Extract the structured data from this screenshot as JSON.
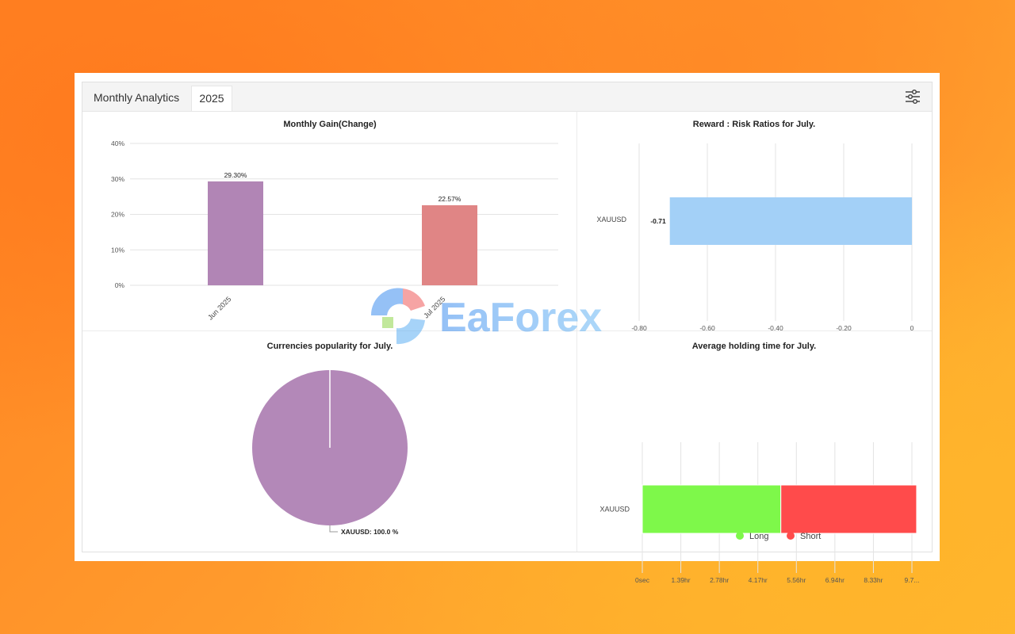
{
  "header": {
    "title": "Monthly Analytics",
    "year": "2025"
  },
  "watermark": "EaForex",
  "colors": {
    "jun": "#b185b5",
    "jul": "#e08585",
    "risk_bar": "#a3d0f7",
    "long": "#7ef84a",
    "short": "#ff4b4b",
    "pie": "#b388b8"
  },
  "chart_data": [
    {
      "type": "bar",
      "title": "Monthly Gain(Change)",
      "categories": [
        "Jun 2025",
        "Jul 2025"
      ],
      "values": [
        29.3,
        22.57
      ],
      "value_labels": [
        "29.30%",
        "22.57%"
      ],
      "ylim": [
        0,
        40
      ],
      "yticks": [
        "0%",
        "10%",
        "20%",
        "30%",
        "40%"
      ],
      "grid": true
    },
    {
      "type": "bar",
      "orientation": "horizontal",
      "title": "Reward : Risk Ratios for July.",
      "categories": [
        "XAUUSD"
      ],
      "values": [
        -0.71
      ],
      "value_labels": [
        "-0.71"
      ],
      "xlim": [
        -0.8,
        0
      ],
      "xticks": [
        "-0.80",
        "-0.60",
        "-0.40",
        "-0.20",
        "0"
      ],
      "grid": true
    },
    {
      "type": "pie",
      "title": "Currencies popularity for July.",
      "slices": [
        {
          "label": "XAUUSD: 100.0 %",
          "value": 100.0
        }
      ]
    },
    {
      "type": "bar",
      "orientation": "horizontal",
      "stacked": true,
      "title": "Average holding time for July.",
      "categories": [
        "XAUUSD"
      ],
      "series": [
        {
          "name": "Long",
          "values": [
            5.0
          ]
        },
        {
          "name": "Short",
          "values": [
            4.9
          ]
        }
      ],
      "xlim": [
        0,
        9.73
      ],
      "xticks": [
        "0sec",
        "1.39hr",
        "2.78hr",
        "4.17hr",
        "5.56hr",
        "6.94hr",
        "8.33hr",
        "9.7..."
      ],
      "legend": "bottom",
      "grid": true
    }
  ]
}
